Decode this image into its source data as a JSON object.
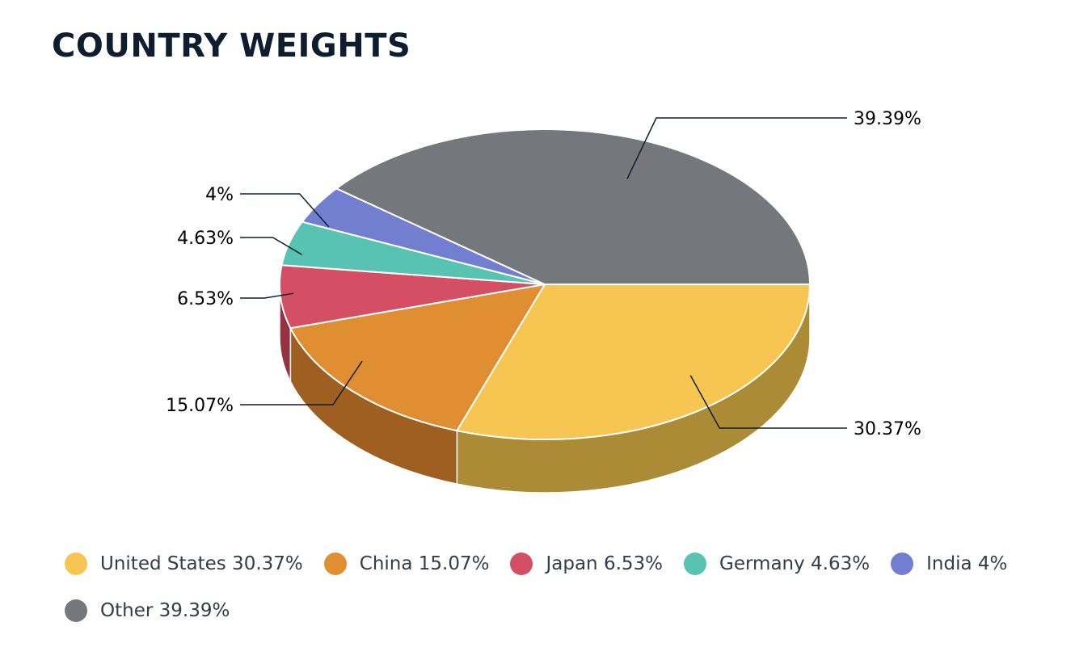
{
  "title": "COUNTRY WEIGHTS",
  "chart_data": {
    "type": "pie",
    "title": "COUNTRY WEIGHTS",
    "legend_position": "bottom",
    "slices": [
      {
        "name": "United States",
        "value": 30.37,
        "label": "30.37%",
        "legend_label": "United States 30.37%",
        "color": "#f6c552",
        "side_color": "#ac8b36"
      },
      {
        "name": "China",
        "value": 15.07,
        "label": "15.07%",
        "legend_label": "China 15.07%",
        "color": "#e08e32",
        "side_color": "#9e5f20"
      },
      {
        "name": "Japan",
        "value": 6.53,
        "label": "6.53%",
        "legend_label": "Japan 6.53%",
        "color": "#d44f63",
        "side_color": "#953440"
      },
      {
        "name": "Germany",
        "value": 4.63,
        "label": "4.63%",
        "legend_label": "Germany 4.63%",
        "color": "#58c3b3",
        "side_color": "#3d8a80"
      },
      {
        "name": "India",
        "value": 4,
        "label": "4%",
        "legend_label": "India 4%",
        "color": "#727ecf",
        "side_color": "#4f5993"
      },
      {
        "name": "Other",
        "value": 39.39,
        "label": "39.39%",
        "legend_label": "Other 39.39%",
        "color": "#74777b",
        "side_color": "#525457"
      }
    ]
  }
}
